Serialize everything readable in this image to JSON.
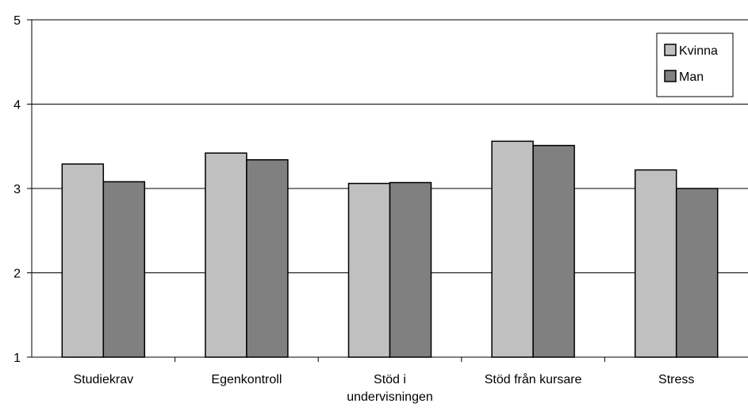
{
  "chart_data": {
    "type": "bar",
    "title": "",
    "xlabel": "",
    "ylabel": "",
    "ylim": [
      1,
      5
    ],
    "yticks": [
      1,
      2,
      3,
      4,
      5
    ],
    "grid": true,
    "legend_position": "top-right",
    "categories": [
      [
        "Studiekrav"
      ],
      [
        "Egenkontroll"
      ],
      [
        "Stöd i",
        "undervisningen"
      ],
      [
        "Stöd från kursare"
      ],
      [
        "Stress"
      ]
    ],
    "series": [
      {
        "name": "Kvinna",
        "color": "#c0c0c0",
        "values": [
          3.29,
          3.42,
          3.06,
          3.56,
          3.22
        ]
      },
      {
        "name": "Man",
        "color": "#808080",
        "values": [
          3.08,
          3.34,
          3.07,
          3.51,
          3.0
        ]
      }
    ]
  }
}
